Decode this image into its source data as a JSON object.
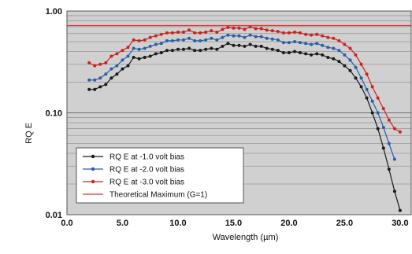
{
  "chart_data": {
    "type": "line",
    "title": "",
    "xlabel": "Wavelength (µm)",
    "ylabel": "RQ E",
    "xlim": [
      0,
      31
    ],
    "ylim": [
      0.01,
      1.0
    ],
    "y_scale": "log",
    "grid": true,
    "legend_position": "bottom-left",
    "background_color": "#d0d0d0",
    "x_ticks": [
      0,
      5,
      10,
      15,
      20,
      25,
      30
    ],
    "x_tick_labels": [
      "0.0",
      "5.0",
      "10.0",
      "15.0",
      "20.0",
      "25.0",
      "30.0"
    ],
    "y_ticks": [
      0.01,
      0.1,
      1.0
    ],
    "y_tick_labels": [
      "0.01",
      "0.10",
      "1.00"
    ],
    "series": [
      {
        "name": "RQ E at -1.0 volt bias",
        "color": "#1a1a1a",
        "marker": "dot",
        "x": [
          2.0,
          2.5,
          3.0,
          3.5,
          4.0,
          4.5,
          5.0,
          5.5,
          6.0,
          6.5,
          7.0,
          7.5,
          8.0,
          8.5,
          9.0,
          9.5,
          10.0,
          10.5,
          11.0,
          11.5,
          12.0,
          12.5,
          13.0,
          13.5,
          14.0,
          14.5,
          15.0,
          15.5,
          16.0,
          16.5,
          17.0,
          17.5,
          18.0,
          18.5,
          19.0,
          19.5,
          20.0,
          20.5,
          21.0,
          21.5,
          22.0,
          22.5,
          23.0,
          23.5,
          24.0,
          24.5,
          25.0,
          25.5,
          26.0,
          26.5,
          27.0,
          27.5,
          28.0,
          28.5,
          29.0,
          29.5,
          30.0
        ],
        "y": [
          0.17,
          0.17,
          0.18,
          0.19,
          0.22,
          0.24,
          0.27,
          0.29,
          0.35,
          0.34,
          0.35,
          0.36,
          0.38,
          0.39,
          0.41,
          0.41,
          0.42,
          0.42,
          0.43,
          0.41,
          0.41,
          0.42,
          0.43,
          0.42,
          0.45,
          0.48,
          0.46,
          0.46,
          0.45,
          0.47,
          0.45,
          0.45,
          0.43,
          0.42,
          0.41,
          0.39,
          0.39,
          0.4,
          0.39,
          0.38,
          0.37,
          0.38,
          0.37,
          0.35,
          0.34,
          0.32,
          0.29,
          0.26,
          0.22,
          0.18,
          0.14,
          0.1,
          0.07,
          0.045,
          0.028,
          0.017,
          0.011
        ]
      },
      {
        "name": "RQ E at -2.0 volt bias",
        "color": "#2a5fa8",
        "marker": "dot",
        "x": [
          2.0,
          2.5,
          3.0,
          3.5,
          4.0,
          4.5,
          5.0,
          5.5,
          6.0,
          6.5,
          7.0,
          7.5,
          8.0,
          8.5,
          9.0,
          9.5,
          10.0,
          10.5,
          11.0,
          11.5,
          12.0,
          12.5,
          13.0,
          13.5,
          14.0,
          14.5,
          15.0,
          15.5,
          16.0,
          16.5,
          17.0,
          17.5,
          18.0,
          18.5,
          19.0,
          19.5,
          20.0,
          20.5,
          21.0,
          21.5,
          22.0,
          22.5,
          23.0,
          23.5,
          24.0,
          24.5,
          25.0,
          25.5,
          26.0,
          26.5,
          27.0,
          27.5,
          28.0,
          28.5,
          29.0,
          29.5
        ],
        "y": [
          0.21,
          0.21,
          0.22,
          0.24,
          0.27,
          0.29,
          0.33,
          0.36,
          0.43,
          0.42,
          0.43,
          0.45,
          0.47,
          0.48,
          0.51,
          0.51,
          0.52,
          0.52,
          0.54,
          0.51,
          0.51,
          0.52,
          0.54,
          0.52,
          0.55,
          0.58,
          0.57,
          0.57,
          0.55,
          0.58,
          0.56,
          0.56,
          0.54,
          0.53,
          0.52,
          0.49,
          0.49,
          0.5,
          0.49,
          0.48,
          0.47,
          0.48,
          0.46,
          0.44,
          0.43,
          0.41,
          0.37,
          0.33,
          0.28,
          0.22,
          0.17,
          0.13,
          0.1,
          0.072,
          0.05,
          0.035
        ]
      },
      {
        "name": "RQ E at -3.0 volt bias",
        "color": "#cc2222",
        "marker": "dot",
        "x": [
          2.0,
          2.5,
          3.0,
          3.5,
          4.0,
          4.5,
          5.0,
          5.5,
          6.0,
          6.5,
          7.0,
          7.5,
          8.0,
          8.5,
          9.0,
          9.5,
          10.0,
          10.5,
          11.0,
          11.5,
          12.0,
          12.5,
          13.0,
          13.5,
          14.0,
          14.5,
          15.0,
          15.5,
          16.0,
          16.5,
          17.0,
          17.5,
          18.0,
          18.5,
          19.0,
          19.5,
          20.0,
          20.5,
          21.0,
          21.5,
          22.0,
          22.5,
          23.0,
          23.5,
          24.0,
          24.5,
          25.0,
          25.5,
          26.0,
          26.5,
          27.0,
          27.5,
          28.0,
          28.5,
          29.0,
          29.5,
          30.0
        ],
        "y": [
          0.31,
          0.29,
          0.3,
          0.31,
          0.36,
          0.38,
          0.41,
          0.44,
          0.52,
          0.51,
          0.52,
          0.55,
          0.57,
          0.59,
          0.61,
          0.61,
          0.62,
          0.62,
          0.65,
          0.61,
          0.61,
          0.62,
          0.64,
          0.62,
          0.66,
          0.69,
          0.68,
          0.68,
          0.66,
          0.7,
          0.67,
          0.67,
          0.65,
          0.64,
          0.63,
          0.61,
          0.61,
          0.62,
          0.61,
          0.59,
          0.58,
          0.59,
          0.57,
          0.55,
          0.54,
          0.51,
          0.47,
          0.43,
          0.37,
          0.3,
          0.24,
          0.18,
          0.14,
          0.11,
          0.085,
          0.07,
          0.065
        ]
      },
      {
        "name": "Theoretical Maximum (G=1)",
        "color": "#e03030",
        "marker": "none",
        "x": [
          0,
          31
        ],
        "y": [
          0.72,
          0.72
        ]
      }
    ]
  }
}
